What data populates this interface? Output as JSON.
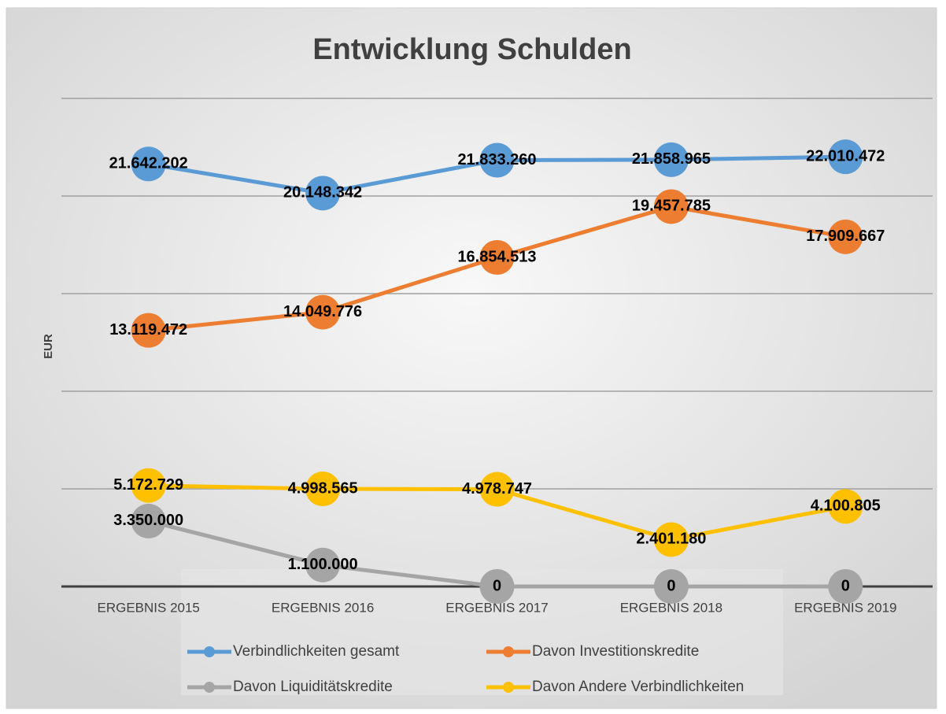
{
  "chart_data": {
    "type": "line",
    "title": "Entwicklung Schulden",
    "y_label": "EUR",
    "categories": [
      "ERGEBNIS 2015",
      "ERGEBNIS 2016",
      "ERGEBNIS 2017",
      "ERGEBNIS 2018",
      "ERGEBNIS 2019"
    ],
    "ylim": [
      0,
      25000000
    ],
    "yticks": [
      0,
      5000000,
      10000000,
      15000000,
      20000000,
      25000000
    ],
    "grid": true,
    "legend": "bottom",
    "series": [
      {
        "name": "Verbindlichkeiten gesamt",
        "color": "#5b9bd5",
        "values": [
          21642202,
          20148342,
          21833260,
          21858965,
          22010472
        ],
        "value_labels": [
          "21.642.202",
          "20.148.342",
          "21.833.260",
          "21.858.965",
          "22.010.472"
        ]
      },
      {
        "name": "Davon Investitionskredite",
        "color": "#ed7d31",
        "values": [
          13119472,
          14049776,
          16854513,
          19457785,
          17909667
        ],
        "value_labels": [
          "13.119.472",
          "14.049.776",
          "16.854.513",
          "19.457.785",
          "17.909.667"
        ]
      },
      {
        "name": "Davon Liquiditätskredite",
        "color": "#a5a5a5",
        "values": [
          3350000,
          1100000,
          0,
          0,
          0
        ],
        "value_labels": [
          "3.350.000",
          "1.100.000",
          "0",
          "0",
          "0"
        ]
      },
      {
        "name": "Davon Andere Verbindlichkeiten",
        "color": "#ffc000",
        "values": [
          5172729,
          4998565,
          4978747,
          2401180,
          4100805
        ],
        "value_labels": [
          "5.172.729",
          "4.998.565",
          "4.978.747",
          "2.401.180",
          "4.100.805"
        ]
      }
    ]
  }
}
